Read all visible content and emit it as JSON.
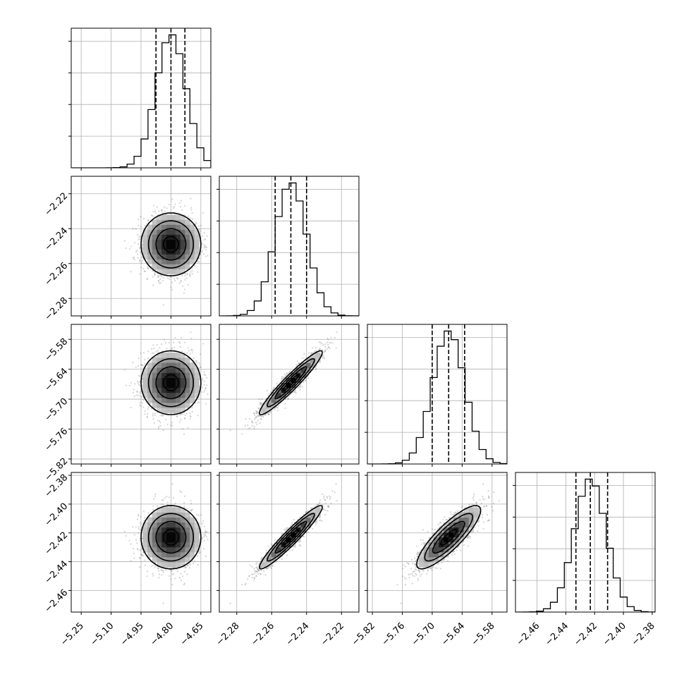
{
  "chart_data": {
    "type": "corner",
    "title": "",
    "params": [
      {
        "name": "",
        "median": -4.8,
        "q16": -4.875,
        "q84": -4.73,
        "std": 0.075,
        "range": [
          -5.3,
          -4.6
        ],
        "ticks": [
          -5.25,
          -5.1,
          -4.95,
          -4.8,
          -4.65
        ],
        "tick_labels": [
          "−5.25",
          "−5.10",
          "−4.95",
          "−4.80",
          "−4.65"
        ]
      },
      {
        "name": "",
        "median": -2.249,
        "q16": -2.258,
        "q84": -2.24,
        "std": 0.009,
        "range": [
          -2.29,
          -2.21
        ],
        "ticks": [
          -2.28,
          -2.26,
          -2.24,
          -2.22
        ],
        "tick_labels": [
          "−2.28",
          "−2.26",
          "−2.24",
          "−2.22"
        ]
      },
      {
        "name": "",
        "median": -5.667,
        "q16": -5.7,
        "q84": -5.635,
        "std": 0.032,
        "range": [
          -5.83,
          -5.55
        ],
        "ticks": [
          -5.82,
          -5.76,
          -5.7,
          -5.64,
          -5.58
        ],
        "tick_labels": [
          "−5.82",
          "−5.76",
          "−5.70",
          "−5.64",
          "−5.58"
        ]
      },
      {
        "name": "",
        "median": -2.423,
        "q16": -2.433,
        "q84": -2.411,
        "std": 0.011,
        "range": [
          -2.475,
          -2.378
        ],
        "ticks": [
          -2.46,
          -2.44,
          -2.42,
          -2.4,
          -2.38
        ],
        "tick_labels": [
          "−2.46",
          "−2.44",
          "−2.42",
          "−2.40",
          "−2.38"
        ]
      }
    ],
    "correlations": [
      [
        1.0,
        0.0,
        0.0,
        0.0
      ],
      [
        0.0,
        1.0,
        0.95,
        0.95
      ],
      [
        0.0,
        0.95,
        1.0,
        0.85
      ],
      [
        0.0,
        0.95,
        0.85,
        1.0
      ]
    ],
    "histogram_bins": 20,
    "quantiles": [
      0.16,
      0.5,
      0.84
    ],
    "contour_levels_sigma": [
      0.5,
      1.0,
      1.5,
      2.0
    ],
    "grid": true,
    "colors": {
      "contour": "#000000",
      "points": "#555555",
      "density_dark": "#000000",
      "density_light": "#ffffff"
    }
  }
}
